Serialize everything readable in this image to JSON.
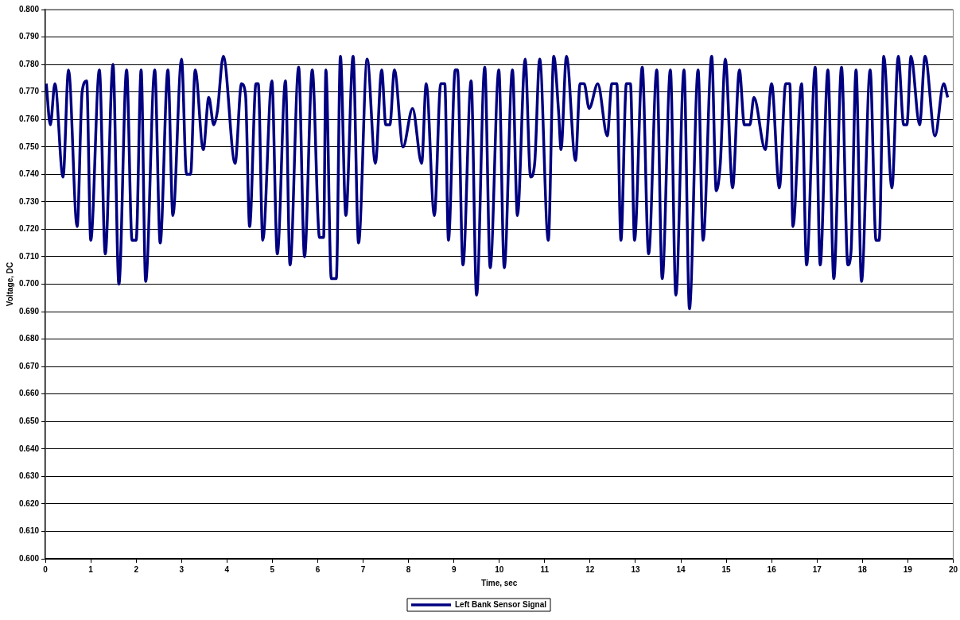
{
  "chart_data": {
    "type": "line",
    "xlabel": "Time, sec",
    "ylabel": "Voltage, DC",
    "xlim": [
      0,
      20
    ],
    "xticks": [
      0,
      1,
      2,
      3,
      4,
      5,
      6,
      7,
      8,
      9,
      10,
      11,
      12,
      13,
      14,
      15,
      16,
      17,
      18,
      19,
      20
    ],
    "ylim": [
      0.6,
      0.8
    ],
    "yticks": [
      {
        "value": 0.6,
        "label": "0.600"
      },
      {
        "value": 0.61,
        "label": "0.610"
      },
      {
        "value": 0.62,
        "label": "0.620"
      },
      {
        "value": 0.63,
        "label": "0.630"
      },
      {
        "value": 0.64,
        "label": "0.640"
      },
      {
        "value": 0.65,
        "label": "0.650"
      },
      {
        "value": 0.66,
        "label": "0.660"
      },
      {
        "value": 0.67,
        "label": "0.670"
      },
      {
        "value": 0.68,
        "label": "0.680"
      },
      {
        "value": 0.69,
        "label": "0.690"
      },
      {
        "value": 0.7,
        "label": "0.700"
      },
      {
        "value": 0.71,
        "label": "0.710"
      },
      {
        "value": 0.72,
        "label": "0.720"
      },
      {
        "value": 0.73,
        "label": "0.730"
      },
      {
        "value": 0.74,
        "label": "0.740"
      },
      {
        "value": 0.75,
        "label": "0.750"
      },
      {
        "value": 0.76,
        "label": "0.760"
      },
      {
        "value": 0.77,
        "label": "0.770"
      },
      {
        "value": 0.78,
        "label": "0.780"
      },
      {
        "value": 0.79,
        "label": "0.790"
      },
      {
        "value": 0.8,
        "label": "0.800"
      }
    ],
    "grid": "y",
    "legend": "bottom",
    "marker": "none",
    "line_style": "solid",
    "x": [
      0.02,
      0.11,
      0.21,
      0.39,
      0.51,
      0.7,
      0.81,
      0.91,
      1.0,
      1.19,
      1.32,
      1.49,
      1.62,
      1.79,
      1.91,
      2.0,
      2.11,
      2.21,
      2.41,
      2.53,
      2.7,
      2.81,
      3.0,
      3.11,
      3.2,
      3.3,
      3.48,
      3.6,
      3.71,
      3.79,
      3.92,
      4.18,
      4.32,
      4.41,
      4.5,
      4.64,
      4.69,
      4.79,
      4.99,
      5.11,
      5.29,
      5.39,
      5.58,
      5.71,
      5.88,
      6.04,
      6.13,
      6.18,
      6.3,
      6.41,
      6.5,
      6.62,
      6.78,
      6.9,
      7.09,
      7.27,
      7.41,
      7.5,
      7.59,
      7.69,
      7.88,
      8.09,
      8.29,
      8.39,
      8.57,
      8.71,
      8.8,
      8.88,
      9.03,
      9.08,
      9.2,
      9.38,
      9.5,
      9.68,
      9.8,
      9.99,
      10.11,
      10.29,
      10.4,
      10.57,
      10.69,
      10.78,
      10.89,
      11.08,
      11.2,
      11.31,
      11.36,
      11.48,
      11.68,
      11.78,
      11.87,
      11.98,
      12.17,
      12.38,
      12.48,
      12.59,
      12.68,
      12.8,
      12.89,
      12.98,
      13.15,
      13.29,
      13.47,
      13.59,
      13.77,
      13.89,
      14.07,
      14.19,
      14.38,
      14.49,
      14.68,
      14.78,
      14.87,
      14.98,
      15.14,
      15.29,
      15.4,
      15.52,
      15.61,
      15.86,
      16.0,
      16.17,
      16.31,
      16.4,
      16.47,
      16.66,
      16.77,
      16.96,
      17.07,
      17.24,
      17.37,
      17.54,
      17.68,
      17.75,
      17.86,
      17.98,
      18.17,
      18.3,
      18.37,
      18.47,
      18.65,
      18.79,
      18.91,
      18.98,
      19.07,
      19.26,
      19.38,
      19.6,
      19.79,
      19.88
    ],
    "series": [
      {
        "name": "Left Bank Sensor Signal",
        "color": "#000080",
        "values": [
          0.773,
          0.758,
          0.773,
          0.739,
          0.778,
          0.721,
          0.77,
          0.774,
          0.716,
          0.778,
          0.711,
          0.78,
          0.7,
          0.778,
          0.716,
          0.716,
          0.778,
          0.701,
          0.778,
          0.715,
          0.778,
          0.725,
          0.782,
          0.74,
          0.74,
          0.778,
          0.749,
          0.768,
          0.758,
          0.763,
          0.783,
          0.744,
          0.773,
          0.769,
          0.721,
          0.773,
          0.773,
          0.716,
          0.774,
          0.711,
          0.774,
          0.707,
          0.779,
          0.71,
          0.778,
          0.717,
          0.717,
          0.778,
          0.702,
          0.702,
          0.783,
          0.725,
          0.783,
          0.715,
          0.782,
          0.744,
          0.778,
          0.758,
          0.758,
          0.778,
          0.75,
          0.764,
          0.744,
          0.773,
          0.725,
          0.773,
          0.773,
          0.716,
          0.778,
          0.778,
          0.707,
          0.774,
          0.696,
          0.779,
          0.706,
          0.778,
          0.706,
          0.778,
          0.725,
          0.782,
          0.739,
          0.744,
          0.782,
          0.716,
          0.783,
          0.762,
          0.749,
          0.783,
          0.745,
          0.773,
          0.773,
          0.764,
          0.773,
          0.754,
          0.773,
          0.773,
          0.716,
          0.773,
          0.773,
          0.716,
          0.779,
          0.711,
          0.778,
          0.702,
          0.778,
          0.696,
          0.778,
          0.691,
          0.778,
          0.716,
          0.783,
          0.734,
          0.744,
          0.782,
          0.735,
          0.778,
          0.758,
          0.758,
          0.768,
          0.749,
          0.773,
          0.735,
          0.773,
          0.773,
          0.721,
          0.773,
          0.707,
          0.779,
          0.707,
          0.778,
          0.702,
          0.779,
          0.707,
          0.712,
          0.778,
          0.701,
          0.778,
          0.716,
          0.716,
          0.783,
          0.735,
          0.783,
          0.758,
          0.758,
          0.783,
          0.758,
          0.783,
          0.754,
          0.773,
          0.768
        ]
      }
    ]
  }
}
